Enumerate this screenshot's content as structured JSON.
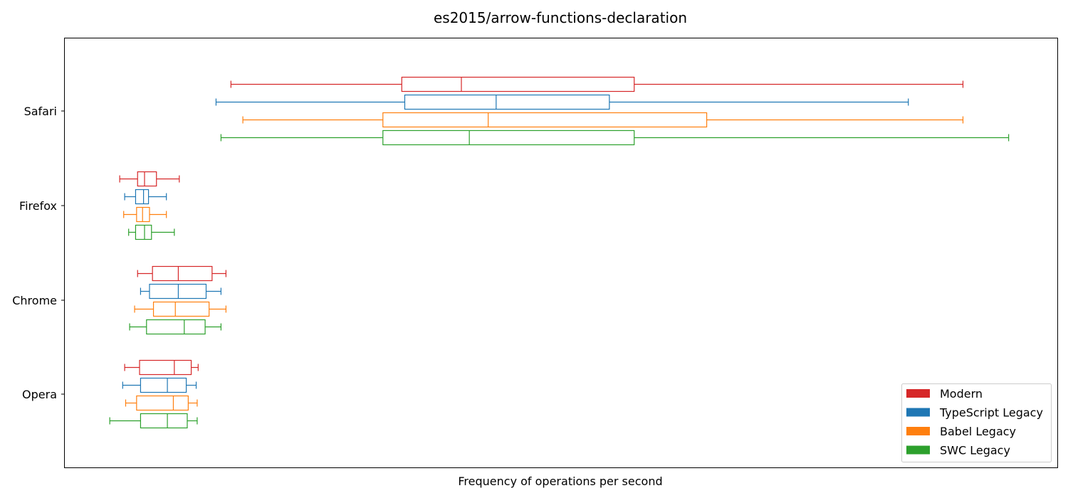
{
  "chart_data": {
    "type": "boxplot",
    "orientation": "horizontal",
    "title": "es2015/arrow-functions-declaration",
    "xlabel": "Frequency of operations per second",
    "ylabel": "",
    "x_ticks_visible": false,
    "xlim": [
      0,
      1000
    ],
    "grid": false,
    "legend_position": "bottom-right",
    "categories": [
      "Safari",
      "Firefox",
      "Chrome",
      "Opera"
    ],
    "series": [
      {
        "name": "Modern",
        "color": "#d62728",
        "boxes": [
          {
            "min": 168,
            "q1": 340,
            "median": 400,
            "q3": 574,
            "max": 905
          },
          {
            "min": 56,
            "q1": 74,
            "median": 81,
            "q3": 93,
            "max": 116
          },
          {
            "min": 74,
            "q1": 89,
            "median": 115,
            "q3": 149,
            "max": 163
          },
          {
            "min": 61,
            "q1": 76,
            "median": 111,
            "q3": 128,
            "max": 135
          }
        ]
      },
      {
        "name": "TypeScript Legacy",
        "color": "#1f77b4",
        "boxes": [
          {
            "min": 153,
            "q1": 343,
            "median": 435,
            "q3": 549,
            "max": 850
          },
          {
            "min": 61,
            "q1": 72,
            "median": 80,
            "q3": 85,
            "max": 103
          },
          {
            "min": 77,
            "q1": 86,
            "median": 115,
            "q3": 143,
            "max": 158
          },
          {
            "min": 59,
            "q1": 77,
            "median": 104,
            "q3": 123,
            "max": 133
          }
        ]
      },
      {
        "name": "Babel Legacy",
        "color": "#ff7f0e",
        "boxes": [
          {
            "min": 180,
            "q1": 321,
            "median": 427,
            "q3": 647,
            "max": 905
          },
          {
            "min": 60,
            "q1": 73,
            "median": 79,
            "q3": 86,
            "max": 103
          },
          {
            "min": 71,
            "q1": 90,
            "median": 112,
            "q3": 146,
            "max": 163
          },
          {
            "min": 62,
            "q1": 73,
            "median": 110,
            "q3": 125,
            "max": 134
          }
        ]
      },
      {
        "name": "SWC Legacy",
        "color": "#2ca02c",
        "boxes": [
          {
            "min": 158,
            "q1": 321,
            "median": 408,
            "q3": 574,
            "max": 951
          },
          {
            "min": 65,
            "q1": 72,
            "median": 81,
            "q3": 88,
            "max": 111
          },
          {
            "min": 66,
            "q1": 83,
            "median": 121,
            "q3": 142,
            "max": 158
          },
          {
            "min": 46,
            "q1": 77,
            "median": 104,
            "q3": 124,
            "max": 134
          }
        ]
      }
    ]
  }
}
